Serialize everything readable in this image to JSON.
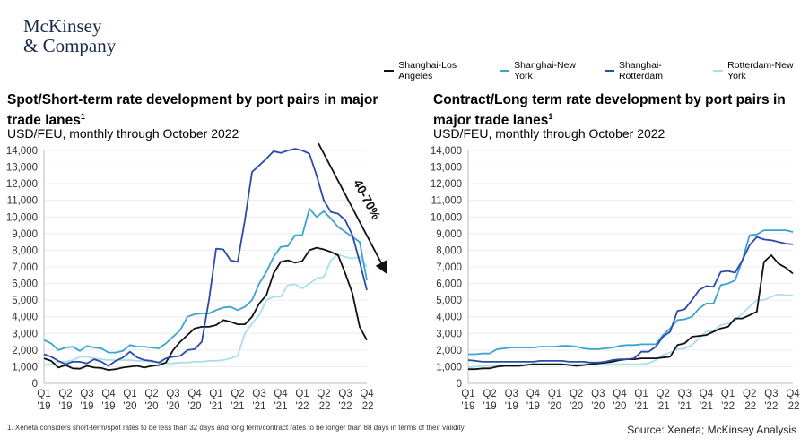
{
  "brand": {
    "logo_line1": "McKinsey",
    "logo_line2": "& Company"
  },
  "legend": [
    {
      "name": "Shanghai-Los Angeles",
      "color": "#111111"
    },
    {
      "name": "Shanghai-New York",
      "color": "#3aa3cf"
    },
    {
      "name": "Shanghai-Rotterdam",
      "color": "#2b4ba8"
    },
    {
      "name": "Rotterdam-New York",
      "color": "#aadfea"
    }
  ],
  "footnote": "1.   Xeneta considers short-term/spot rates to be less than 32 days and long term/contract rates to be longer than 88 days in terms of their validity",
  "source": "Source: Xeneta; McKinsey Analysis",
  "chart_data": [
    {
      "type": "line",
      "title": "Spot/Short-term rate development by port pairs in major trade lanes",
      "title_sup": "1",
      "subtitle": "USD/FEU, monthly through October 2022",
      "ylim": [
        0,
        14000
      ],
      "yticks": [
        "0",
        "1,000",
        "2,000",
        "3,000",
        "4,000",
        "5,000",
        "6,000",
        "7,000",
        "8,000",
        "9,000",
        "10,000",
        "11,000",
        "12,000",
        "13,000",
        "14,000"
      ],
      "xticks": [
        [
          "Q1",
          "'19"
        ],
        [
          "Q2",
          "'19"
        ],
        [
          "Q3",
          "'19"
        ],
        [
          "Q4",
          "'19"
        ],
        [
          "Q1",
          "'20"
        ],
        [
          "Q2",
          "'20"
        ],
        [
          "Q3",
          "'20"
        ],
        [
          "Q4",
          "'20"
        ],
        [
          "Q1",
          "'21"
        ],
        [
          "Q2",
          "'21"
        ],
        [
          "Q3",
          "'21"
        ],
        [
          "Q4",
          "'21"
        ],
        [
          "Q1",
          "'22"
        ],
        [
          "Q2",
          "'22"
        ],
        [
          "Q3",
          "'22"
        ],
        [
          "Q4",
          "'22"
        ]
      ],
      "x_range": [
        "Jan 2019",
        "Oct 2022"
      ],
      "grid": true,
      "annotation": "40-70%",
      "series": [
        {
          "name": "Shanghai-Los Angeles",
          "values": [
            1500,
            1350,
            950,
            1100,
            900,
            880,
            1050,
            950,
            920,
            800,
            850,
            950,
            1000,
            1050,
            950,
            1050,
            1100,
            1250,
            2000,
            2500,
            2900,
            3300,
            3400,
            3400,
            3500,
            3800,
            3700,
            3550,
            3550,
            4000,
            4800,
            5300,
            6600,
            7300,
            7400,
            7250,
            7350,
            8000,
            8150,
            8050,
            7900,
            7700,
            6600,
            5400,
            3400,
            2600
          ]
        },
        {
          "name": "Shanghai-New York",
          "values": [
            2600,
            2400,
            2000,
            2150,
            2200,
            1950,
            2250,
            2150,
            2100,
            1850,
            1850,
            1950,
            2300,
            2200,
            2200,
            2150,
            2100,
            2400,
            2800,
            3200,
            4000,
            4150,
            4200,
            4200,
            4400,
            4550,
            4600,
            4400,
            4600,
            5000,
            6000,
            6700,
            7600,
            8200,
            8250,
            8900,
            8900,
            10500,
            10000,
            10350,
            9900,
            9400,
            9100,
            8800,
            8500,
            6200
          ]
        },
        {
          "name": "Shanghai-Rotterdam",
          "values": [
            1750,
            1600,
            1350,
            1150,
            1300,
            1300,
            1200,
            1450,
            1300,
            1050,
            1350,
            1550,
            1900,
            1550,
            1400,
            1350,
            1250,
            1500,
            1600,
            1650,
            2000,
            2050,
            2500,
            5000,
            8100,
            8050,
            7400,
            7300,
            9800,
            12700,
            13100,
            13500,
            13950,
            13850,
            14000,
            14100,
            14000,
            13800,
            12500,
            11000,
            10300,
            10200,
            9800,
            8900,
            7300,
            5600
          ]
        },
        {
          "name": "Rotterdam-New York",
          "values": [
            1100,
            1150,
            1300,
            1300,
            1400,
            1600,
            1600,
            1500,
            1450,
            1400,
            1400,
            1400,
            1400,
            1350,
            1350,
            1300,
            1250,
            1200,
            1200,
            1250,
            1250,
            1300,
            1300,
            1350,
            1350,
            1400,
            1500,
            1650,
            3000,
            3600,
            4100,
            5000,
            5200,
            5200,
            5900,
            5950,
            5700,
            6000,
            6300,
            6400,
            7400,
            7750,
            7600,
            7500,
            7600,
            7000
          ]
        }
      ]
    },
    {
      "type": "line",
      "title": "Contract/Long term rate development by port pairs in major trade lanes",
      "title_sup": "1",
      "subtitle": "USD/FEU, monthly through October 2022",
      "ylim": [
        0,
        14000
      ],
      "yticks": [
        "0",
        "1,000",
        "2,000",
        "3,000",
        "4,000",
        "5,000",
        "6,000",
        "7,000",
        "8,000",
        "9,000",
        "10,000",
        "11,000",
        "12,000",
        "13,000",
        "14,000"
      ],
      "xticks": [
        [
          "Q1",
          "'19"
        ],
        [
          "Q2",
          "'19"
        ],
        [
          "Q3",
          "'19"
        ],
        [
          "Q4",
          "'19"
        ],
        [
          "Q1",
          "'20"
        ],
        [
          "Q2",
          "'20"
        ],
        [
          "Q3",
          "'20"
        ],
        [
          "Q4",
          "'20"
        ],
        [
          "Q1",
          "'21"
        ],
        [
          "Q2",
          "'21"
        ],
        [
          "Q3",
          "'21"
        ],
        [
          "Q4",
          "'21"
        ],
        [
          "Q1",
          "'22"
        ],
        [
          "Q2",
          "'22"
        ],
        [
          "Q3",
          "'22"
        ],
        [
          "Q4",
          "'22"
        ]
      ],
      "x_range": [
        "Jan 2019",
        "Oct 2022"
      ],
      "grid": true,
      "series": [
        {
          "name": "Shanghai-Los Angeles",
          "values": [
            850,
            850,
            900,
            900,
            1000,
            1050,
            1050,
            1050,
            1100,
            1150,
            1150,
            1150,
            1150,
            1150,
            1100,
            1050,
            1100,
            1150,
            1200,
            1250,
            1300,
            1400,
            1450,
            1450,
            1500,
            1500,
            1500,
            1550,
            1600,
            2300,
            2400,
            2800,
            2850,
            2900,
            3100,
            3300,
            3400,
            3900,
            3900,
            4100,
            4300,
            7300,
            7700,
            7200,
            6950,
            6600
          ]
        },
        {
          "name": "Shanghai-New York",
          "values": [
            1750,
            1750,
            1800,
            1800,
            2050,
            2100,
            2150,
            2150,
            2150,
            2150,
            2200,
            2200,
            2200,
            2250,
            2250,
            2200,
            2100,
            2050,
            2050,
            2100,
            2150,
            2250,
            2300,
            2300,
            2350,
            2350,
            2350,
            2900,
            3300,
            3800,
            3850,
            4000,
            4500,
            4800,
            4800,
            5900,
            6000,
            6200,
            7400,
            8900,
            8950,
            9200,
            9200,
            9200,
            9200,
            9100
          ]
        },
        {
          "name": "Shanghai-Rotterdam",
          "values": [
            1400,
            1350,
            1300,
            1300,
            1300,
            1300,
            1300,
            1300,
            1300,
            1300,
            1350,
            1350,
            1350,
            1350,
            1300,
            1300,
            1300,
            1250,
            1250,
            1300,
            1400,
            1450,
            1450,
            1500,
            1900,
            1900,
            2200,
            2800,
            3100,
            4350,
            4450,
            5000,
            5600,
            5850,
            5800,
            6700,
            6750,
            6650,
            7400,
            8300,
            8800,
            8650,
            8600,
            8500,
            8400,
            8350
          ]
        },
        {
          "name": "Rotterdam-New York",
          "values": [
            950,
            1000,
            1050,
            1050,
            1100,
            1100,
            1100,
            1100,
            1150,
            1150,
            1150,
            1150,
            1150,
            1150,
            1150,
            1150,
            1150,
            1150,
            1150,
            1150,
            1150,
            1150,
            1150,
            1150,
            1150,
            1200,
            1400,
            1700,
            1850,
            2050,
            2100,
            2300,
            2700,
            3100,
            3150,
            3500,
            3600,
            3800,
            4200,
            4600,
            5000,
            5000,
            5200,
            5350,
            5300,
            5300
          ]
        }
      ]
    }
  ]
}
